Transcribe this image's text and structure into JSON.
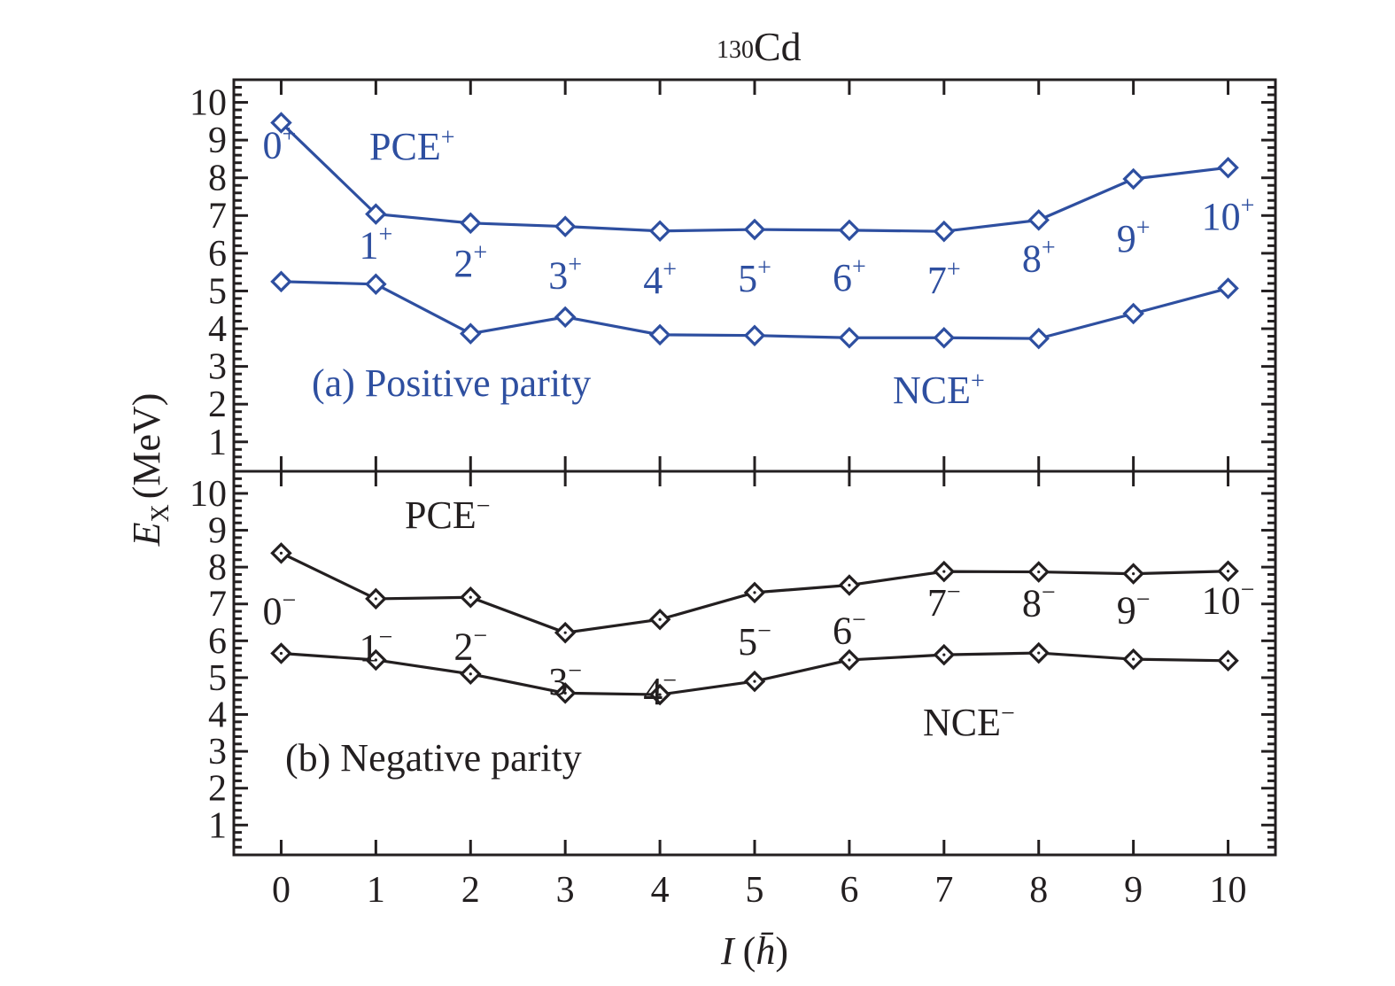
{
  "chart_data": {
    "type": "line",
    "title": "130 Cd",
    "title_parts": {
      "mass_number": "130",
      "element": "Cd"
    },
    "xlabel": "I (ħ̄)",
    "xlabel_parts": {
      "var": "I",
      "unit": "h̄"
    },
    "ylabel": "E_X (MeV)",
    "ylabel_parts": {
      "var": "E",
      "sub": "X",
      "unit": "(MeV)"
    },
    "x": [
      0,
      1,
      2,
      3,
      4,
      5,
      6,
      7,
      8,
      9,
      10
    ],
    "xlim": [
      -0.5,
      10.5
    ],
    "x_ticks": [
      "0",
      "1",
      "2",
      "3",
      "4",
      "5",
      "6",
      "7",
      "8",
      "9",
      "10"
    ],
    "y_ticks": [
      "1",
      "2",
      "3",
      "4",
      "5",
      "6",
      "7",
      "8",
      "9",
      "10"
    ],
    "grid": false,
    "panels": [
      {
        "id": "a",
        "label": "(a) Positive parity",
        "color": "#2e4fa0",
        "ylim": [
          0.22,
          10.6
        ],
        "marker": "open-diamond",
        "series": [
          {
            "name": "PCE+",
            "label_base": "PCE",
            "label_sup": "+",
            "values": [
              9.46,
              7.04,
              6.8,
              6.71,
              6.59,
              6.63,
              6.61,
              6.58,
              6.88,
              7.97,
              8.27
            ]
          },
          {
            "name": "NCE+",
            "label_base": "NCE",
            "label_sup": "+",
            "values": [
              5.25,
              5.18,
              3.87,
              4.31,
              3.84,
              3.82,
              3.76,
              3.76,
              3.74,
              4.4,
              5.07
            ]
          }
        ],
        "spin_labels": [
          {
            "base": "0",
            "sup": "+"
          },
          {
            "base": "1",
            "sup": "+"
          },
          {
            "base": "2",
            "sup": "+"
          },
          {
            "base": "3",
            "sup": "+"
          },
          {
            "base": "4",
            "sup": "+"
          },
          {
            "base": "5",
            "sup": "+"
          },
          {
            "base": "6",
            "sup": "+"
          },
          {
            "base": "7",
            "sup": "+"
          },
          {
            "base": "8",
            "sup": "+"
          },
          {
            "base": "9",
            "sup": "+"
          },
          {
            "base": "10",
            "sup": "+"
          }
        ]
      },
      {
        "id": "b",
        "label": "(b) Negative parity",
        "color": "#231f20",
        "ylim": [
          0.19,
          10.6
        ],
        "marker": "dotted-diamond",
        "series": [
          {
            "name": "PCE−",
            "label_base": "PCE",
            "label_sup": "−",
            "values": [
              8.38,
              7.14,
              7.18,
              6.22,
              6.58,
              7.31,
              7.51,
              7.88,
              7.87,
              7.82,
              7.89
            ]
          },
          {
            "name": "NCE−",
            "label_base": "NCE",
            "label_sup": "−",
            "values": [
              5.66,
              5.48,
              5.1,
              4.58,
              4.54,
              4.9,
              5.48,
              5.62,
              5.67,
              5.5,
              5.46
            ]
          }
        ],
        "spin_labels": [
          {
            "base": "0",
            "sup": "−"
          },
          {
            "base": "1",
            "sup": "−"
          },
          {
            "base": "2",
            "sup": "−"
          },
          {
            "base": "3",
            "sup": "−"
          },
          {
            "base": "4",
            "sup": "−"
          },
          {
            "base": "5",
            "sup": "−"
          },
          {
            "base": "6",
            "sup": "−"
          },
          {
            "base": "7",
            "sup": "−"
          },
          {
            "base": "8",
            "sup": "−"
          },
          {
            "base": "9",
            "sup": "−"
          },
          {
            "base": "10",
            "sup": "−"
          }
        ]
      }
    ]
  }
}
